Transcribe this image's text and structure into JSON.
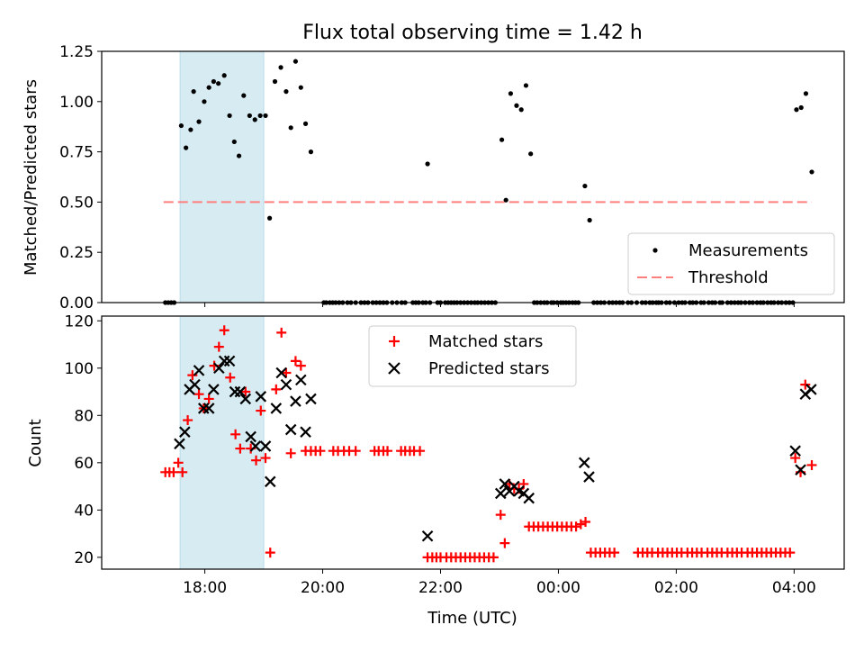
{
  "chart_data": {
    "title": "Flux total observing time = 1.42 h",
    "xlabel": "Time (UTC)",
    "x_unit": "hours since 00:00 of first night (24 = 00:00 next day)",
    "xlim": [
      16.25,
      28.85
    ],
    "x_ticks": [
      {
        "v": 18,
        "label": "18:00"
      },
      {
        "v": 20,
        "label": "20:00"
      },
      {
        "v": 22,
        "label": "22:00"
      },
      {
        "v": 24,
        "label": "00:00"
      },
      {
        "v": 26,
        "label": "02:00"
      },
      {
        "v": 28,
        "label": "04:00"
      }
    ],
    "highlight_span": [
      17.58,
      19.0
    ],
    "colors": {
      "measure": "#000000",
      "threshold": "#ff7f7f",
      "matched": "#ff0000",
      "predicted": "#000000",
      "span": "#add8e6"
    },
    "top": {
      "type": "scatter",
      "ylabel": "Matched/Predicted stars",
      "ylim": [
        0,
        1.25
      ],
      "y_ticks": [
        "0.00",
        "0.25",
        "0.50",
        "0.75",
        "1.00",
        "1.25"
      ],
      "threshold": 0.5,
      "threshold_x": [
        17.3,
        28.3
      ],
      "legend": [
        "Measurements",
        "Threshold"
      ],
      "series_zero_x": [
        17.33,
        17.38,
        17.43,
        17.48,
        20.02,
        20.06,
        20.12,
        20.17,
        20.22,
        20.28,
        20.34,
        20.42,
        20.48,
        20.56,
        20.65,
        20.71,
        20.77,
        20.85,
        20.91,
        20.97,
        21.03,
        21.09,
        21.18,
        21.26,
        21.34,
        21.4,
        21.53,
        21.58,
        21.63,
        21.7,
        21.75,
        21.82,
        21.95,
        22.0,
        22.08,
        22.13,
        22.18,
        22.23,
        22.28,
        22.34,
        22.4,
        22.46,
        22.52,
        22.58,
        22.63,
        22.69,
        22.75,
        22.81,
        22.87,
        22.93,
        23.59,
        23.64,
        23.7,
        23.76,
        23.81,
        23.88,
        23.92,
        23.98,
        24.04,
        24.08,
        24.13,
        24.18,
        24.24,
        24.29,
        24.34,
        24.6,
        24.66,
        24.72,
        24.78,
        24.86,
        24.92,
        24.98,
        25.04,
        25.09,
        25.18,
        25.24,
        25.33,
        25.42,
        25.48,
        25.55,
        25.6,
        25.66,
        25.7,
        25.75,
        25.83,
        25.89,
        25.97,
        26.04,
        26.1,
        26.15,
        26.23,
        26.28,
        26.34,
        26.42,
        26.47,
        26.55,
        26.61,
        26.66,
        26.74,
        26.78,
        26.87,
        26.93,
        26.99,
        27.05,
        27.1,
        27.17,
        27.24,
        27.3,
        27.37,
        27.43,
        27.48,
        27.55,
        27.61,
        27.66,
        27.73,
        27.79,
        27.86,
        27.92,
        27.98
      ],
      "measurements": [
        {
          "x": 17.6,
          "y": 0.88
        },
        {
          "x": 17.68,
          "y": 0.77
        },
        {
          "x": 17.76,
          "y": 0.86
        },
        {
          "x": 17.81,
          "y": 1.05
        },
        {
          "x": 17.9,
          "y": 0.9
        },
        {
          "x": 17.99,
          "y": 1.0
        },
        {
          "x": 18.07,
          "y": 1.07
        },
        {
          "x": 18.15,
          "y": 1.1
        },
        {
          "x": 18.23,
          "y": 1.09
        },
        {
          "x": 18.33,
          "y": 1.13
        },
        {
          "x": 18.42,
          "y": 0.93
        },
        {
          "x": 18.5,
          "y": 0.8
        },
        {
          "x": 18.58,
          "y": 0.73
        },
        {
          "x": 18.66,
          "y": 1.03
        },
        {
          "x": 18.76,
          "y": 0.93
        },
        {
          "x": 18.85,
          "y": 0.91
        },
        {
          "x": 18.94,
          "y": 0.93
        },
        {
          "x": 19.03,
          "y": 0.93
        },
        {
          "x": 19.1,
          "y": 0.42
        },
        {
          "x": 19.19,
          "y": 1.1
        },
        {
          "x": 19.29,
          "y": 1.17
        },
        {
          "x": 19.38,
          "y": 1.05
        },
        {
          "x": 19.46,
          "y": 0.87
        },
        {
          "x": 19.54,
          "y": 1.2
        },
        {
          "x": 19.63,
          "y": 1.07
        },
        {
          "x": 19.71,
          "y": 0.89
        },
        {
          "x": 19.8,
          "y": 0.75
        },
        {
          "x": 21.78,
          "y": 0.69
        },
        {
          "x": 23.04,
          "y": 0.81
        },
        {
          "x": 23.11,
          "y": 0.51
        },
        {
          "x": 23.19,
          "y": 1.04
        },
        {
          "x": 23.29,
          "y": 0.98
        },
        {
          "x": 23.37,
          "y": 0.96
        },
        {
          "x": 23.45,
          "y": 1.08
        },
        {
          "x": 23.53,
          "y": 0.74
        },
        {
          "x": 24.45,
          "y": 0.58
        },
        {
          "x": 24.53,
          "y": 0.41
        },
        {
          "x": 28.04,
          "y": 0.96
        },
        {
          "x": 28.12,
          "y": 0.97
        },
        {
          "x": 28.2,
          "y": 1.04
        },
        {
          "x": 28.3,
          "y": 0.65
        }
      ]
    },
    "bottom": {
      "type": "scatter",
      "ylabel": "Count",
      "ylim": [
        15,
        122
      ],
      "y_ticks": [
        20,
        40,
        60,
        80,
        100,
        120
      ],
      "legend": [
        "Matched stars",
        "Predicted stars"
      ],
      "matched": [
        {
          "x": 17.33,
          "y": 56
        },
        {
          "x": 17.4,
          "y": 56
        },
        {
          "x": 17.47,
          "y": 56
        },
        {
          "x": 17.55,
          "y": 60
        },
        {
          "x": 17.62,
          "y": 56
        },
        {
          "x": 17.71,
          "y": 78
        },
        {
          "x": 17.79,
          "y": 97
        },
        {
          "x": 17.9,
          "y": 89
        },
        {
          "x": 17.98,
          "y": 83
        },
        {
          "x": 18.07,
          "y": 87
        },
        {
          "x": 18.16,
          "y": 101
        },
        {
          "x": 18.24,
          "y": 109
        },
        {
          "x": 18.33,
          "y": 116
        },
        {
          "x": 18.43,
          "y": 96
        },
        {
          "x": 18.52,
          "y": 72
        },
        {
          "x": 18.6,
          "y": 66
        },
        {
          "x": 18.69,
          "y": 90
        },
        {
          "x": 18.78,
          "y": 66
        },
        {
          "x": 18.87,
          "y": 61
        },
        {
          "x": 18.95,
          "y": 82
        },
        {
          "x": 19.03,
          "y": 62
        },
        {
          "x": 19.11,
          "y": 22
        },
        {
          "x": 19.21,
          "y": 91
        },
        {
          "x": 19.3,
          "y": 115
        },
        {
          "x": 19.38,
          "y": 98
        },
        {
          "x": 19.46,
          "y": 64
        },
        {
          "x": 19.54,
          "y": 103
        },
        {
          "x": 19.63,
          "y": 101
        },
        {
          "x": 19.71,
          "y": 65
        },
        {
          "x": 19.8,
          "y": 65
        },
        {
          "x": 19.88,
          "y": 65
        },
        {
          "x": 19.96,
          "y": 65
        },
        {
          "x": 20.18,
          "y": 65
        },
        {
          "x": 20.26,
          "y": 65
        },
        {
          "x": 20.36,
          "y": 65
        },
        {
          "x": 20.45,
          "y": 65
        },
        {
          "x": 20.56,
          "y": 65
        },
        {
          "x": 20.88,
          "y": 65
        },
        {
          "x": 20.95,
          "y": 65
        },
        {
          "x": 21.03,
          "y": 65
        },
        {
          "x": 21.1,
          "y": 65
        },
        {
          "x": 21.33,
          "y": 65
        },
        {
          "x": 21.4,
          "y": 65
        },
        {
          "x": 21.48,
          "y": 65
        },
        {
          "x": 21.55,
          "y": 65
        },
        {
          "x": 21.65,
          "y": 65
        },
        {
          "x": 21.78,
          "y": 20
        },
        {
          "x": 21.86,
          "y": 20
        },
        {
          "x": 21.93,
          "y": 20
        },
        {
          "x": 22.0,
          "y": 20
        },
        {
          "x": 22.1,
          "y": 20
        },
        {
          "x": 22.18,
          "y": 20
        },
        {
          "x": 22.26,
          "y": 20
        },
        {
          "x": 22.34,
          "y": 20
        },
        {
          "x": 22.42,
          "y": 20
        },
        {
          "x": 22.5,
          "y": 20
        },
        {
          "x": 22.58,
          "y": 20
        },
        {
          "x": 22.66,
          "y": 20
        },
        {
          "x": 22.74,
          "y": 20
        },
        {
          "x": 22.82,
          "y": 20
        },
        {
          "x": 22.9,
          "y": 20
        },
        {
          "x": 23.02,
          "y": 38
        },
        {
          "x": 23.09,
          "y": 26
        },
        {
          "x": 23.17,
          "y": 51
        },
        {
          "x": 23.25,
          "y": 49
        },
        {
          "x": 23.33,
          "y": 49
        },
        {
          "x": 23.41,
          "y": 51
        },
        {
          "x": 23.5,
          "y": 33
        },
        {
          "x": 23.58,
          "y": 33
        },
        {
          "x": 23.66,
          "y": 33
        },
        {
          "x": 23.74,
          "y": 33
        },
        {
          "x": 23.82,
          "y": 33
        },
        {
          "x": 23.9,
          "y": 33
        },
        {
          "x": 23.98,
          "y": 33
        },
        {
          "x": 24.06,
          "y": 33
        },
        {
          "x": 24.14,
          "y": 33
        },
        {
          "x": 24.22,
          "y": 33
        },
        {
          "x": 24.3,
          "y": 33
        },
        {
          "x": 24.38,
          "y": 34
        },
        {
          "x": 24.46,
          "y": 35
        },
        {
          "x": 24.55,
          "y": 22
        },
        {
          "x": 24.63,
          "y": 22
        },
        {
          "x": 24.71,
          "y": 22
        },
        {
          "x": 24.79,
          "y": 22
        },
        {
          "x": 24.87,
          "y": 22
        },
        {
          "x": 24.95,
          "y": 22
        },
        {
          "x": 25.35,
          "y": 22
        },
        {
          "x": 25.43,
          "y": 22
        },
        {
          "x": 25.51,
          "y": 22
        },
        {
          "x": 25.59,
          "y": 22
        },
        {
          "x": 25.69,
          "y": 22
        },
        {
          "x": 25.77,
          "y": 22
        },
        {
          "x": 25.85,
          "y": 22
        },
        {
          "x": 25.93,
          "y": 22
        },
        {
          "x": 26.01,
          "y": 22
        },
        {
          "x": 26.09,
          "y": 22
        },
        {
          "x": 26.19,
          "y": 22
        },
        {
          "x": 26.27,
          "y": 22
        },
        {
          "x": 26.35,
          "y": 22
        },
        {
          "x": 26.43,
          "y": 22
        },
        {
          "x": 26.53,
          "y": 22
        },
        {
          "x": 26.61,
          "y": 22
        },
        {
          "x": 26.69,
          "y": 22
        },
        {
          "x": 26.77,
          "y": 22
        },
        {
          "x": 26.87,
          "y": 22
        },
        {
          "x": 26.95,
          "y": 22
        },
        {
          "x": 27.03,
          "y": 22
        },
        {
          "x": 27.11,
          "y": 22
        },
        {
          "x": 27.21,
          "y": 22
        },
        {
          "x": 27.29,
          "y": 22
        },
        {
          "x": 27.37,
          "y": 22
        },
        {
          "x": 27.45,
          "y": 22
        },
        {
          "x": 27.53,
          "y": 22
        },
        {
          "x": 27.61,
          "y": 22
        },
        {
          "x": 27.69,
          "y": 22
        },
        {
          "x": 27.77,
          "y": 22
        },
        {
          "x": 27.85,
          "y": 22
        },
        {
          "x": 27.93,
          "y": 22
        },
        {
          "x": 28.02,
          "y": 62
        },
        {
          "x": 28.11,
          "y": 56
        },
        {
          "x": 28.19,
          "y": 93
        },
        {
          "x": 28.3,
          "y": 59
        }
      ],
      "predicted": [
        {
          "x": 17.57,
          "y": 68
        },
        {
          "x": 17.66,
          "y": 73
        },
        {
          "x": 17.74,
          "y": 91
        },
        {
          "x": 17.83,
          "y": 93
        },
        {
          "x": 17.9,
          "y": 99
        },
        {
          "x": 17.98,
          "y": 83
        },
        {
          "x": 18.07,
          "y": 83
        },
        {
          "x": 18.15,
          "y": 91
        },
        {
          "x": 18.24,
          "y": 100
        },
        {
          "x": 18.33,
          "y": 103
        },
        {
          "x": 18.42,
          "y": 103
        },
        {
          "x": 18.51,
          "y": 90
        },
        {
          "x": 18.6,
          "y": 90
        },
        {
          "x": 18.69,
          "y": 87
        },
        {
          "x": 18.78,
          "y": 71
        },
        {
          "x": 18.86,
          "y": 67
        },
        {
          "x": 18.95,
          "y": 88
        },
        {
          "x": 19.03,
          "y": 67
        },
        {
          "x": 19.11,
          "y": 52
        },
        {
          "x": 19.21,
          "y": 83
        },
        {
          "x": 19.3,
          "y": 98
        },
        {
          "x": 19.38,
          "y": 93
        },
        {
          "x": 19.46,
          "y": 74
        },
        {
          "x": 19.54,
          "y": 86
        },
        {
          "x": 19.63,
          "y": 95
        },
        {
          "x": 19.71,
          "y": 73
        },
        {
          "x": 19.8,
          "y": 87
        },
        {
          "x": 21.78,
          "y": 29
        },
        {
          "x": 23.02,
          "y": 47
        },
        {
          "x": 23.09,
          "y": 51
        },
        {
          "x": 23.17,
          "y": 48
        },
        {
          "x": 23.25,
          "y": 50
        },
        {
          "x": 23.33,
          "y": 48
        },
        {
          "x": 23.41,
          "y": 47
        },
        {
          "x": 23.5,
          "y": 45
        },
        {
          "x": 24.44,
          "y": 60
        },
        {
          "x": 24.52,
          "y": 54
        },
        {
          "x": 28.02,
          "y": 65
        },
        {
          "x": 28.11,
          "y": 57
        },
        {
          "x": 28.19,
          "y": 89
        },
        {
          "x": 28.29,
          "y": 91
        }
      ]
    }
  }
}
